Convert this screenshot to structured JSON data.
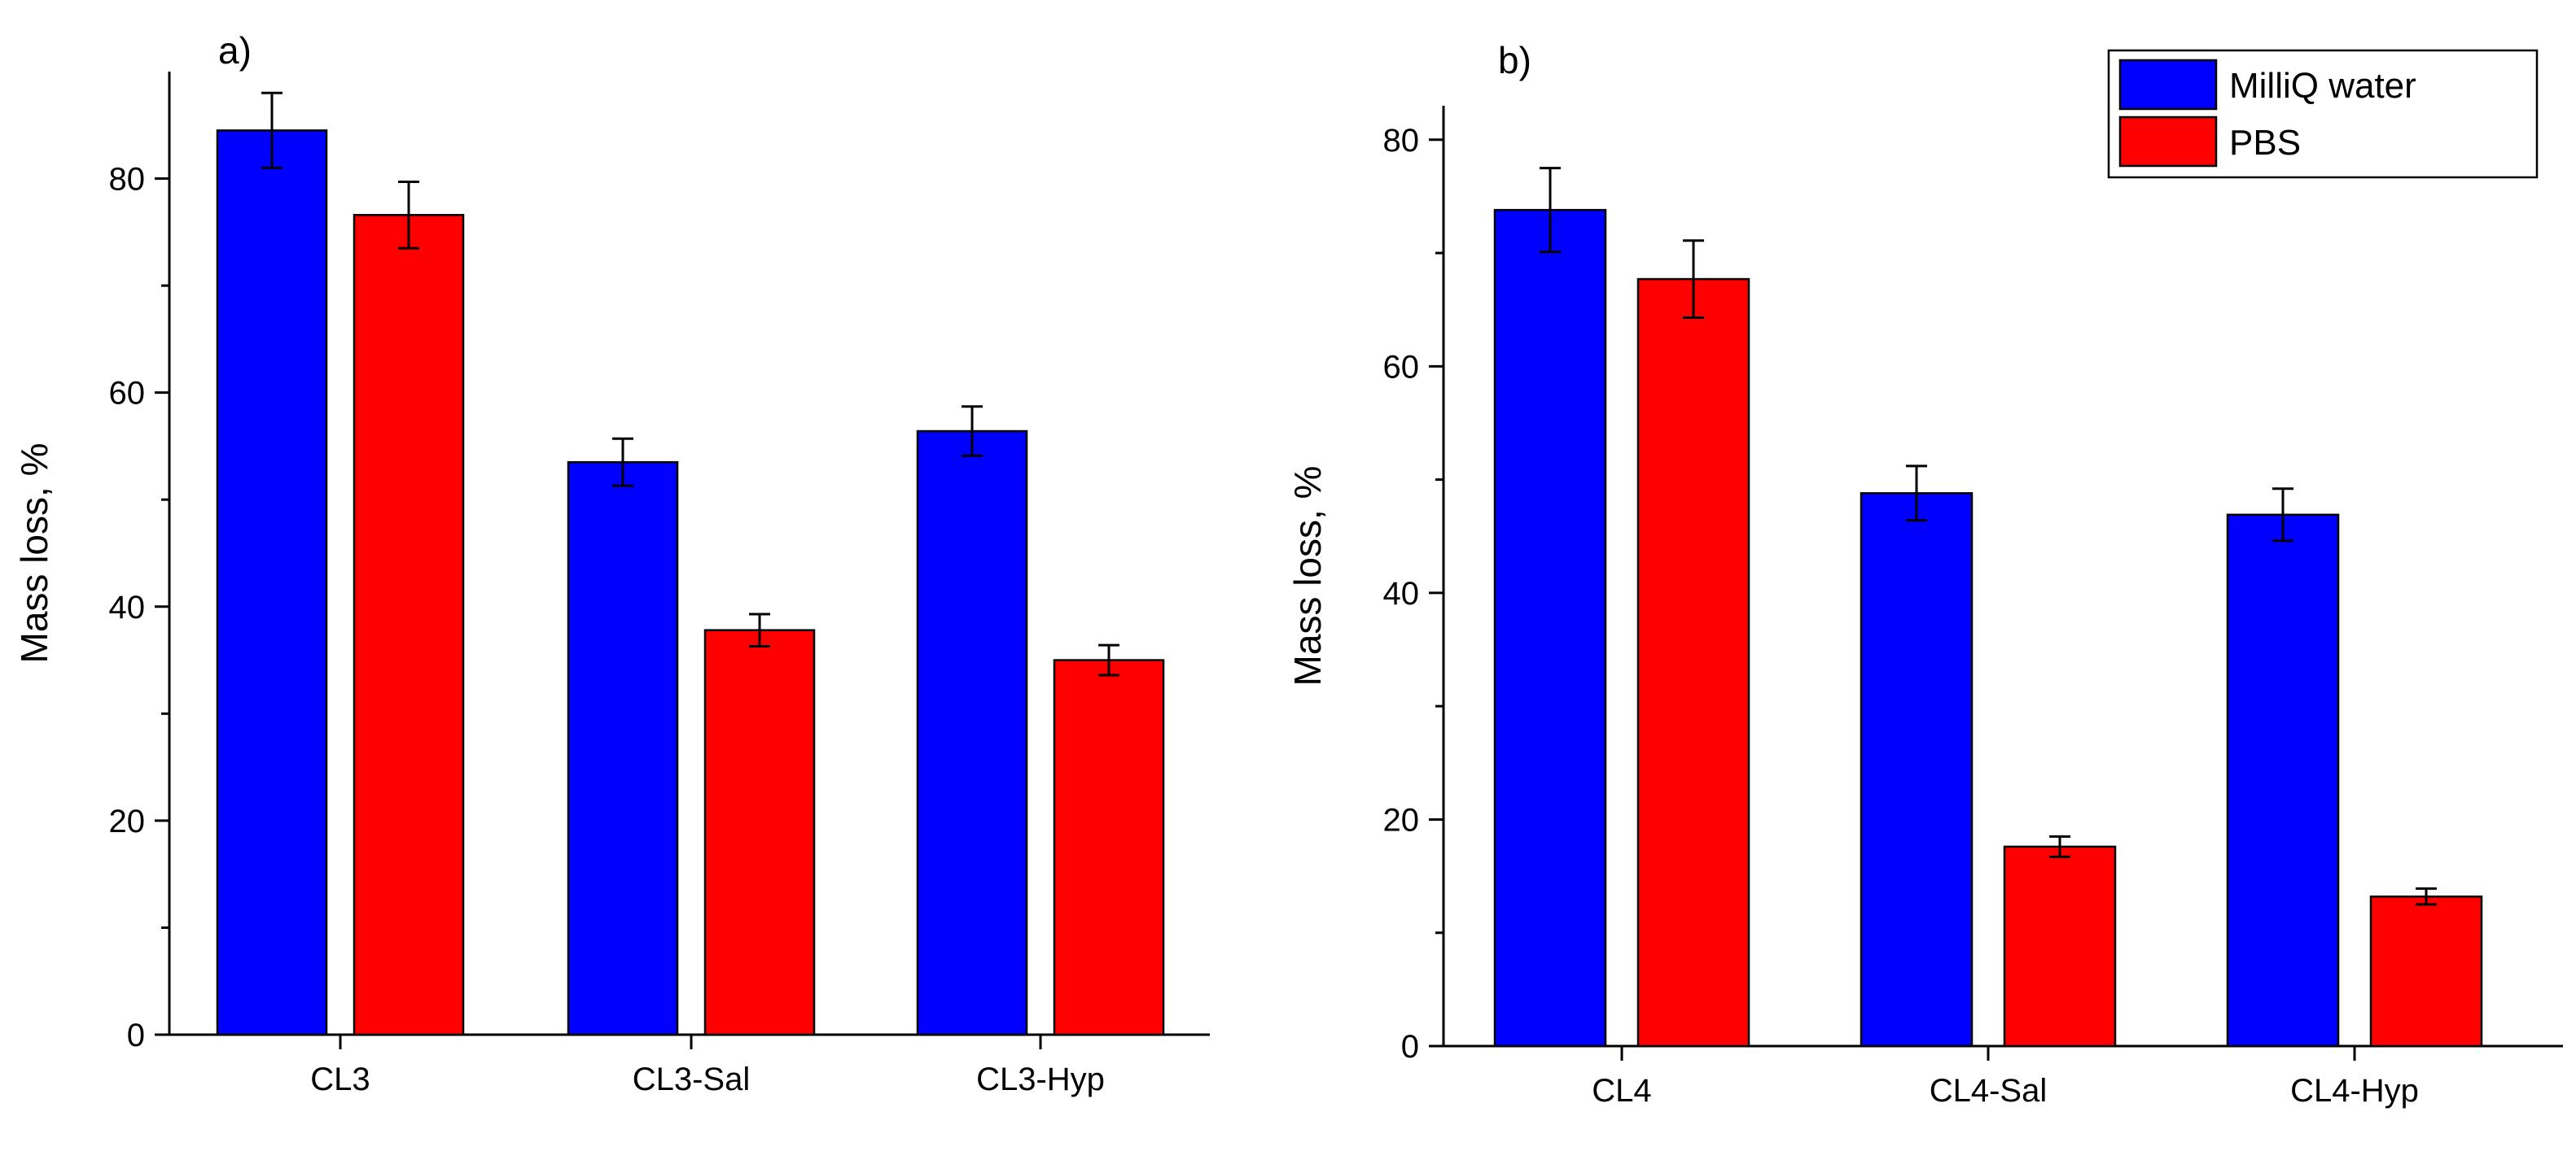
{
  "chart_data": [
    {
      "id": "panel-a",
      "type": "bar",
      "panel_label": "a)",
      "ylabel": "Mass loss, %",
      "xlabel": "",
      "ylim": [
        0,
        90
      ],
      "yticks": [
        0,
        20,
        40,
        60,
        80
      ],
      "categories": [
        "CL3",
        "CL3-Sal",
        "CL3-Hyp"
      ],
      "series": [
        {
          "name": "MilliQ water",
          "color": "#0000ff",
          "values": [
            84.5,
            53.5,
            56.4
          ],
          "errors": [
            3.5,
            2.2,
            2.3
          ]
        },
        {
          "name": "PBS",
          "color": "#ff0000",
          "values": [
            76.6,
            37.8,
            35.0
          ],
          "errors": [
            3.1,
            1.5,
            1.4
          ]
        }
      ]
    },
    {
      "id": "panel-b",
      "type": "bar",
      "panel_label": "b)",
      "ylabel": "Mass loss, %",
      "xlabel": "",
      "ylim": [
        0,
        83
      ],
      "yticks": [
        0,
        20,
        40,
        60,
        80
      ],
      "categories": [
        "CL4",
        "CL4-Sal",
        "CL4-Hyp"
      ],
      "series": [
        {
          "name": "MilliQ water",
          "color": "#0000ff",
          "values": [
            73.8,
            48.8,
            46.9
          ],
          "errors": [
            3.7,
            2.4,
            2.3
          ]
        },
        {
          "name": "PBS",
          "color": "#ff0000",
          "values": [
            67.7,
            17.6,
            13.2
          ],
          "errors": [
            3.4,
            0.9,
            0.7
          ]
        }
      ]
    }
  ],
  "legend": {
    "placement": "top-right",
    "entries": [
      {
        "label": "MilliQ water",
        "color": "#0000ff"
      },
      {
        "label": "PBS",
        "color": "#ff0000"
      }
    ]
  }
}
